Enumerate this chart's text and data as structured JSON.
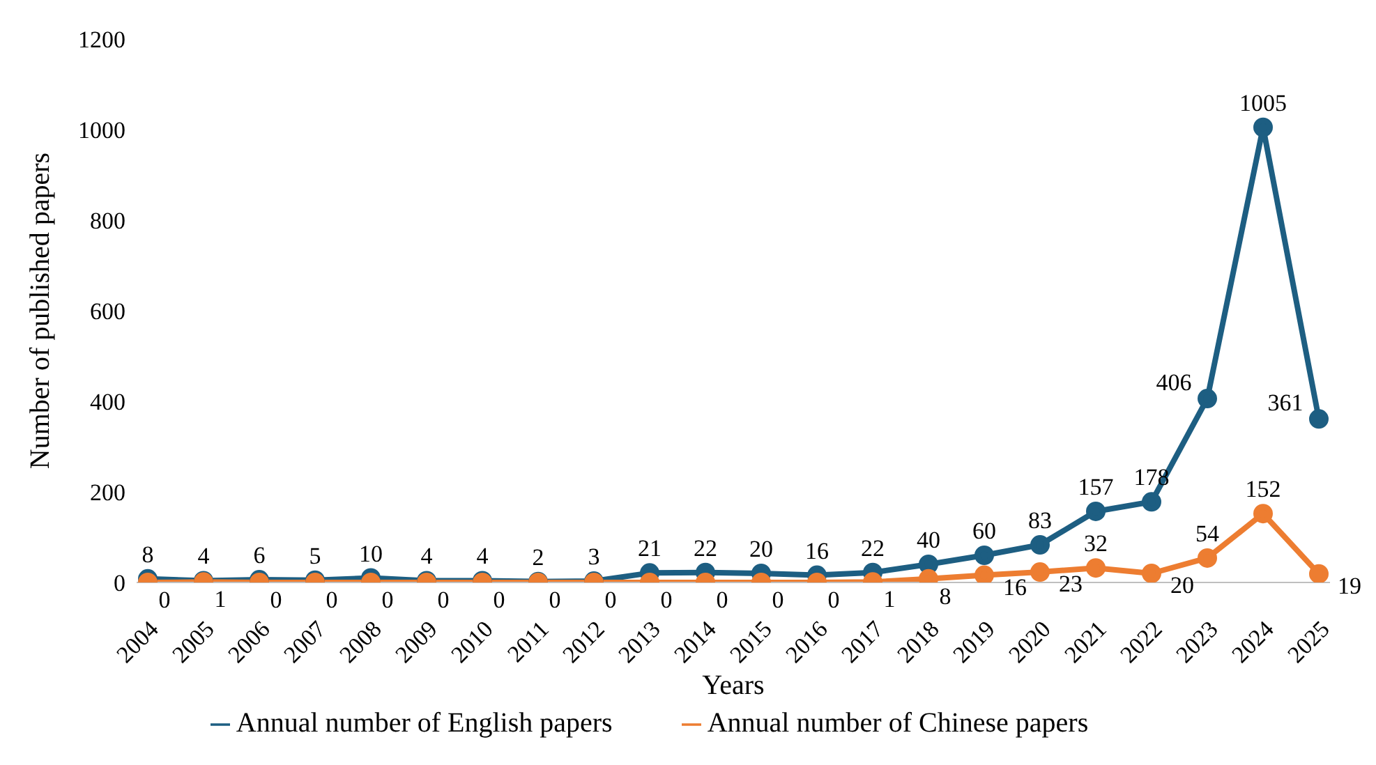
{
  "chart_data": {
    "type": "line",
    "xlabel": "Years",
    "ylabel": "Number of published papers",
    "categories": [
      "2004",
      "2005",
      "2006",
      "2007",
      "2008",
      "2009",
      "2010",
      "2011",
      "2012",
      "2013",
      "2014",
      "2015",
      "2016",
      "2017",
      "2018",
      "2019",
      "2020",
      "2021",
      "2022",
      "2023",
      "2024",
      "2025"
    ],
    "series": [
      {
        "name": "Annual number of English papers",
        "color": "#1d5e82",
        "values": [
          8,
          4,
          6,
          5,
          10,
          4,
          4,
          2,
          3,
          21,
          22,
          20,
          16,
          22,
          40,
          60,
          83,
          157,
          178,
          406,
          1005,
          361
        ]
      },
      {
        "name": "Annual number of Chinese papers",
        "color": "#ed7d31",
        "values": [
          0,
          1,
          0,
          0,
          0,
          0,
          0,
          0,
          0,
          0,
          0,
          0,
          0,
          1,
          8,
          16,
          23,
          32,
          20,
          54,
          152,
          19
        ]
      }
    ],
    "ylim": [
      0,
      1200
    ],
    "yticks": [
      0,
      200,
      400,
      600,
      800,
      1000,
      1200
    ],
    "grid": false,
    "legend": "bottom",
    "marker": "circle",
    "line_style": "solid",
    "data_labels": true
  }
}
